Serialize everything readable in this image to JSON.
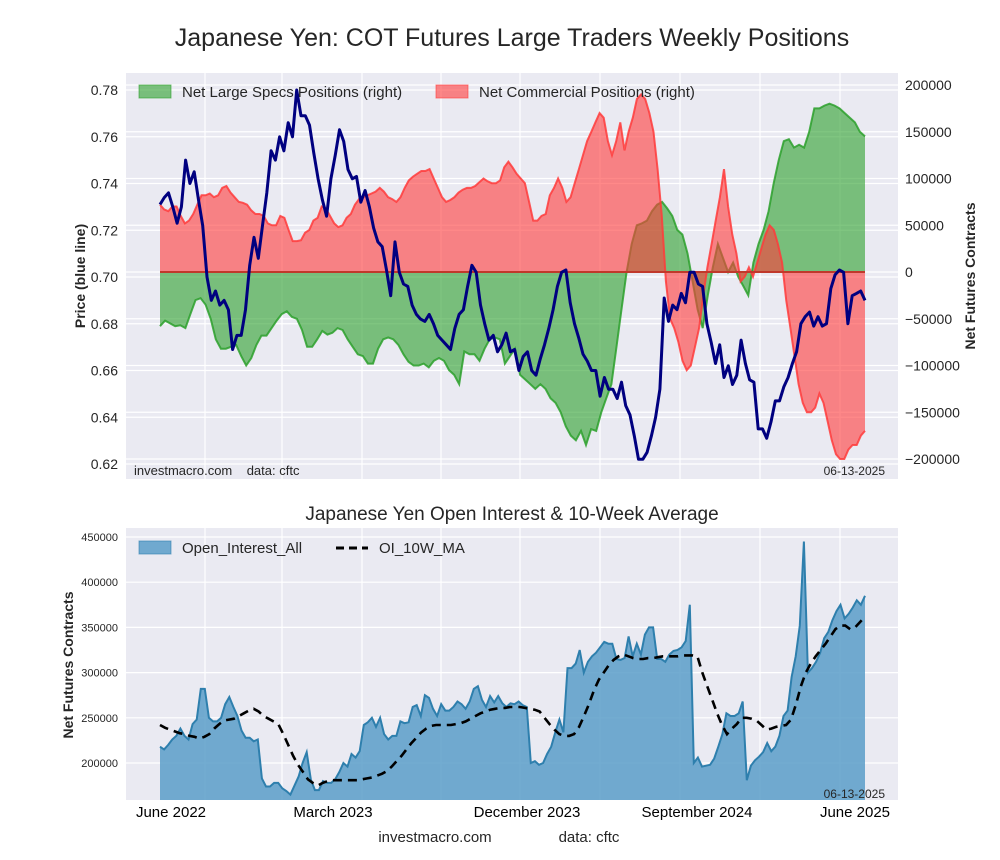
{
  "chart_data": [
    {
      "type": "area",
      "title": "Japanese Yen: COT Futures Large Traders Weekly Positions",
      "ylabel_left": "Price (blue line)",
      "ylabel_right": "Net Futures Contracts",
      "ylim_left": [
        0.618,
        0.782
      ],
      "ylim_right": [
        -205000,
        205000
      ],
      "yticks_left": [
        "0.62",
        "0.64",
        "0.66",
        "0.68",
        "0.70",
        "0.72",
        "0.74",
        "0.76",
        "0.78"
      ],
      "yticks_left_values": [
        0.62,
        0.64,
        0.66,
        0.68,
        0.7,
        0.72,
        0.74,
        0.76,
        0.78
      ],
      "yticks_right": [
        "−200000",
        "−150000",
        "−100000",
        "−50000",
        "0",
        "50000",
        "100000",
        "150000",
        "200000"
      ],
      "yticks_right_values": [
        -200000,
        -150000,
        -100000,
        -50000,
        0,
        50000,
        100000,
        150000,
        200000
      ],
      "x_range": [
        "2022-05-31",
        "2025-06-10"
      ],
      "grid": true,
      "legend": {
        "placement": "top-left",
        "entries": [
          "Net Large Specs Positions (right)",
          "Net Commercial Positions (right)"
        ]
      },
      "annotation_left": "investmacro.com    data: cftc",
      "annotation_right": "06-13-2025",
      "colors": {
        "specs": "#2ca02c",
        "commercial": "#ff3b3b",
        "price": "#000080",
        "zero_line": "#c0392b",
        "background": "#eaeaf2"
      },
      "series": [
        {
          "name": "Net Large Specs Positions (right)",
          "values": [
            -58000,
            -52000,
            -55000,
            -58000,
            -57000,
            -60000,
            -45000,
            -30000,
            -28000,
            -35000,
            -50000,
            -72000,
            -82000,
            -82000,
            -80000,
            -78000,
            -90000,
            -100000,
            -92000,
            -78000,
            -68000,
            -68000,
            -60000,
            -52000,
            -45000,
            -42000,
            -48000,
            -50000,
            -62000,
            -80000,
            -80000,
            -72000,
            -63000,
            -67000,
            -65000,
            -60000,
            -62000,
            -72000,
            -80000,
            -88000,
            -90000,
            -98000,
            -98000,
            -82000,
            -72000,
            -70000,
            -72000,
            -78000,
            -88000,
            -96000,
            -100000,
            -100000,
            -98000,
            -102000,
            -95000,
            -92000,
            -95000,
            -105000,
            -110000,
            -120000,
            -85000,
            -88000,
            -88000,
            -95000,
            -82000,
            -72000,
            -70000,
            -72000,
            -98000,
            -90000,
            -82000,
            -110000,
            -115000,
            -120000,
            -125000,
            -120000,
            -125000,
            -135000,
            -140000,
            -150000,
            -165000,
            -175000,
            -180000,
            -170000,
            -185000,
            -168000,
            -170000,
            -150000,
            -135000,
            -120000,
            -80000,
            -40000,
            0,
            30000,
            50000,
            52000,
            55000,
            65000,
            72000,
            75000,
            68000,
            60000,
            45000,
            40000,
            20000,
            -10000,
            -40000,
            -60000,
            -25000,
            5000,
            30000,
            15000,
            0,
            10000,
            -5000,
            -15000,
            -25000,
            10000,
            30000,
            45000,
            65000,
            95000,
            120000,
            140000,
            142000,
            133000,
            136000,
            133000,
            150000,
            175000,
            175000,
            178000,
            180000,
            178000,
            175000,
            170000,
            165000,
            160000,
            150000,
            145000
          ]
        },
        {
          "name": "Net Commercial Positions (right)",
          "values": [
            72000,
            67000,
            65000,
            70000,
            70000,
            60000,
            52000,
            55000,
            62000,
            72000,
            82000,
            82000,
            84000,
            80000,
            82000,
            90000,
            92000,
            85000,
            80000,
            75000,
            74000,
            72000,
            66000,
            62000,
            62000,
            60000,
            52000,
            50000,
            50000,
            60000,
            58000,
            45000,
            33000,
            33000,
            34000,
            42000,
            45000,
            55000,
            58000,
            70000,
            68000,
            60000,
            52000,
            48000,
            50000,
            58000,
            62000,
            72000,
            78000,
            80000,
            82000,
            84000,
            86000,
            90000,
            86000,
            80000,
            78000,
            75000,
            80000,
            90000,
            98000,
            102000,
            105000,
            108000,
            108000,
            110000,
            100000,
            90000,
            80000,
            75000,
            77000,
            80000,
            85000,
            88000,
            90000,
            90000,
            92000,
            96000,
            100000,
            97000,
            95000,
            95000,
            98000,
            112000,
            118000,
            112000,
            105000,
            100000,
            95000,
            75000,
            55000,
            55000,
            60000,
            62000,
            82000,
            90000,
            100000,
            90000,
            75000,
            80000,
            95000,
            110000,
            125000,
            140000,
            150000,
            160000,
            170000,
            165000,
            140000,
            125000,
            140000,
            160000,
            130000,
            150000,
            165000,
            185000,
            190000,
            185000,
            170000,
            150000,
            110000,
            60000,
            -10000,
            -50000,
            -60000,
            -75000,
            -95000,
            -105000,
            -100000,
            -80000,
            -60000,
            -25000,
            5000,
            30000,
            55000,
            80000,
            110000,
            70000,
            40000,
            20000,
            -10000,
            -5000,
            5000,
            -5000,
            10000,
            25000,
            40000,
            50000,
            45000,
            30000,
            10000,
            -30000,
            -60000,
            -90000,
            -120000,
            -140000,
            -150000,
            -150000,
            -145000,
            -130000,
            -140000,
            -160000,
            -180000,
            -195000,
            -200000,
            -200000,
            -190000,
            -185000,
            -185000,
            -175000,
            -170000
          ]
        },
        {
          "name": "Price (blue line)",
          "values": [
            0.731,
            0.734,
            0.736,
            0.73,
            0.723,
            0.73,
            0.75,
            0.74,
            0.745,
            0.733,
            0.722,
            0.7,
            0.69,
            0.694,
            0.688,
            0.69,
            0.686,
            0.669,
            0.675,
            0.675,
            0.686,
            0.705,
            0.717,
            0.708,
            0.722,
            0.736,
            0.754,
            0.75,
            0.76,
            0.754,
            0.766,
            0.76,
            0.78,
            0.769,
            0.769,
            0.765,
            0.753,
            0.742,
            0.733,
            0.726,
            0.742,
            0.752,
            0.763,
            0.758,
            0.746,
            0.742,
            0.743,
            0.732,
            0.737,
            0.73,
            0.721,
            0.715,
            0.713,
            0.703,
            0.692,
            0.715,
            0.702,
            0.697,
            0.696,
            0.688,
            0.684,
            0.682,
            0.681,
            0.684,
            0.68,
            0.675,
            0.673,
            0.671,
            0.669,
            0.678,
            0.684,
            0.686,
            0.696,
            0.705,
            0.702,
            0.688,
            0.68,
            0.673,
            0.675,
            0.668,
            0.671,
            0.676,
            0.668,
            0.669,
            0.66,
            0.666,
            0.668,
            0.66,
            0.658,
            0.665,
            0.671,
            0.678,
            0.686,
            0.696,
            0.702,
            0.703,
            0.689,
            0.68,
            0.674,
            0.667,
            0.664,
            0.66,
            0.66,
            0.649,
            0.657,
            0.652,
            0.652,
            0.648,
            0.655,
            0.645,
            0.641,
            0.632,
            0.622,
            0.622,
            0.625,
            0.632,
            0.64,
            0.652,
            0.691,
            0.681,
            0.688,
            0.686,
            0.693,
            0.689,
            0.702,
            0.702,
            0.697,
            0.696,
            0.68,
            0.672,
            0.663,
            0.671,
            0.657,
            0.662,
            0.654,
            0.658,
            0.673,
            0.663,
            0.656,
            0.655,
            0.635,
            0.635,
            0.631,
            0.638,
            0.647,
            0.647,
            0.653,
            0.657,
            0.663,
            0.668,
            0.68,
            0.683,
            0.685,
            0.679,
            0.683,
            0.679,
            0.68,
            0.695,
            0.701,
            0.703,
            0.702,
            0.68,
            0.692,
            0.693,
            0.694,
            0.69
          ]
        }
      ]
    },
    {
      "type": "area",
      "title": "Japanese Yen Open Interest & 10-Week Average",
      "ylabel": "Net Futures Contracts",
      "xlabel": "",
      "ylim": [
        160000,
        460000
      ],
      "yticks": [
        "200000",
        "250000",
        "300000",
        "350000",
        "400000",
        "450000"
      ],
      "yticks_values": [
        200000,
        250000,
        300000,
        350000,
        400000,
        450000
      ],
      "xticks": [
        "June 2022",
        "March 2023",
        "December 2023",
        "September 2024",
        "June 2025"
      ],
      "x_range": [
        "2022-05-31",
        "2025-06-10"
      ],
      "grid": true,
      "legend": {
        "placement": "top-left",
        "entries": [
          "Open_Interest_All",
          "OI_10W_MA"
        ]
      },
      "annotation_right": "06-13-2025",
      "colors": {
        "oi_fill": "#5b9ec9",
        "oi_line": "#2e7fad",
        "ma": "#000000",
        "background": "#eaeaf2"
      },
      "series": [
        {
          "name": "Open_Interest_All",
          "values": [
            218000,
            215000,
            220000,
            226000,
            230000,
            238000,
            230000,
            226000,
            243000,
            248000,
            282000,
            282000,
            250000,
            246000,
            246000,
            250000,
            265000,
            273000,
            262000,
            252000,
            236000,
            228000,
            228000,
            224000,
            226000,
            183000,
            174000,
            174000,
            178000,
            178000,
            172000,
            169000,
            165000,
            175000,
            185000,
            200000,
            212000,
            182000,
            170000,
            170000,
            180000,
            178000,
            178000,
            182000,
            190000,
            200000,
            196000,
            210000,
            206000,
            213000,
            242000,
            245000,
            250000,
            240000,
            250000,
            232000,
            226000,
            230000,
            230000,
            246000,
            244000,
            245000,
            262000,
            264000,
            252000,
            275000,
            272000,
            260000,
            252000,
            265000,
            258000,
            258000,
            262000,
            268000,
            265000,
            260000,
            268000,
            282000,
            285000,
            270000,
            262000,
            274000,
            267000,
            274000,
            266000,
            262000,
            266000,
            265000,
            268000,
            264000,
            262000,
            200000,
            202000,
            198000,
            200000,
            210000,
            218000,
            234000,
            248000,
            234000,
            305000,
            305000,
            310000,
            325000,
            300000,
            312000,
            318000,
            322000,
            328000,
            334000,
            332000,
            332000,
            315000,
            314000,
            316000,
            340000,
            318000,
            332000,
            320000,
            342000,
            350000,
            350000,
            315000,
            315000,
            312000,
            320000,
            324000,
            325000,
            328000,
            335000,
            375000,
            200000,
            206000,
            196000,
            197000,
            198000,
            205000,
            218000,
            232000,
            255000,
            252000,
            252000,
            255000,
            268000,
            181000,
            197000,
            203000,
            207000,
            212000,
            222000,
            213000,
            218000,
            230000,
            252000,
            258000,
            295000,
            318000,
            352000,
            445000,
            300000,
            305000,
            312000,
            322000,
            338000,
            345000,
            358000,
            368000,
            375000,
            360000,
            365000,
            372000,
            380000,
            375000,
            385000
          ]
        },
        {
          "name": "OI_10W_MA",
          "values": [
            242000,
            239000,
            237000,
            235000,
            233000,
            232000,
            230000,
            229000,
            227000,
            229000,
            232000,
            238000,
            243000,
            247000,
            248000,
            249000,
            252000,
            255000,
            258000,
            260000,
            257000,
            252000,
            249000,
            246000,
            243000,
            232000,
            220000,
            208000,
            198000,
            190000,
            182000,
            178000,
            175000,
            178000,
            180000,
            181000,
            181000,
            181000,
            181000,
            181000,
            181000,
            182000,
            183000,
            184000,
            186000,
            188000,
            191000,
            196000,
            202000,
            208000,
            215000,
            222000,
            228000,
            234000,
            238000,
            241000,
            242000,
            242000,
            242000,
            242000,
            243000,
            244000,
            246000,
            249000,
            252000,
            255000,
            257000,
            259000,
            260000,
            261000,
            261000,
            262000,
            262000,
            262000,
            261000,
            260000,
            259000,
            257000,
            250000,
            243000,
            237000,
            232000,
            230000,
            230000,
            232000,
            240000,
            252000,
            265000,
            280000,
            292000,
            300000,
            308000,
            314000,
            318000,
            320000,
            318000,
            316000,
            315000,
            315000,
            316000,
            316000,
            317000,
            318000,
            318000,
            318000,
            318000,
            319000,
            319000,
            319000,
            318000,
            300000,
            285000,
            270000,
            255000,
            242000,
            232000,
            238000,
            243000,
            250000,
            250000,
            249000,
            247000,
            242000,
            237000,
            238000,
            240000,
            241000,
            242000,
            248000,
            265000,
            285000,
            300000,
            310000,
            318000,
            325000,
            332000,
            340000,
            348000,
            352000,
            352000,
            348000,
            350000,
            356000,
            362000
          ]
        }
      ]
    }
  ],
  "footer": {
    "site": "investmacro.com",
    "source": "data: cftc"
  }
}
